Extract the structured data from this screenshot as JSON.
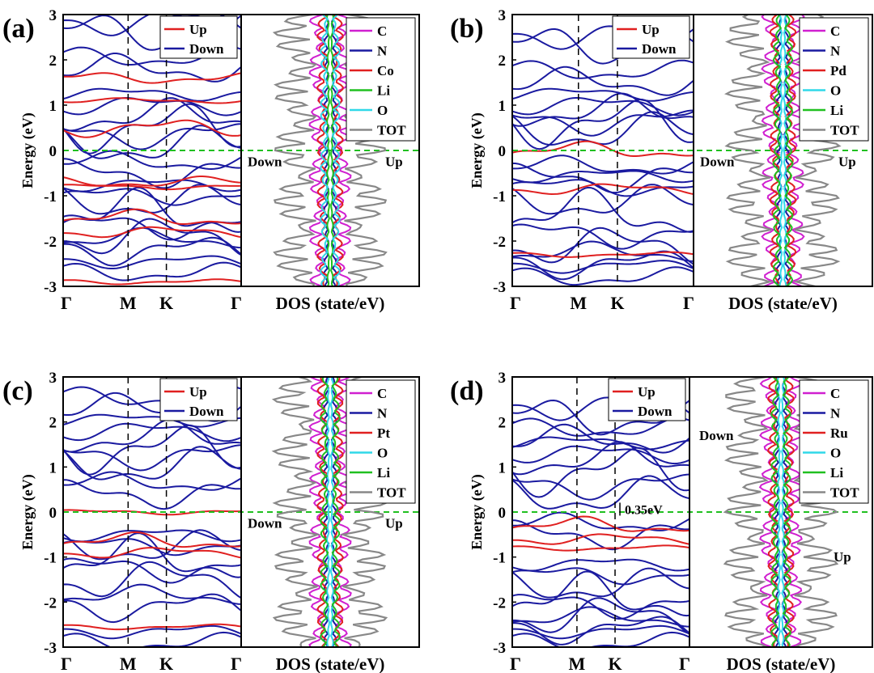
{
  "chart_data": [
    {
      "type": "line",
      "panel": "(a)",
      "ylabel": "Energy (eV)",
      "ylim": [
        -3,
        3
      ],
      "yticks": [
        "-3",
        "-2",
        "-1",
        "0",
        "1",
        "2",
        "3"
      ],
      "k_labels": [
        "Γ",
        "M",
        "K",
        "Γ"
      ],
      "band_legend": [
        "Up",
        "Down"
      ],
      "dos_xlabel": "DOS (state/eV)",
      "dos_legend": [
        "C",
        "N",
        "Co",
        "Li",
        "O",
        "TOT"
      ],
      "dos_colors": [
        "#d020d0",
        "#1a1aa0",
        "#e02020",
        "#20c020",
        "#30d8e8",
        "#888888"
      ],
      "dos_annotations": {
        "down": "Down",
        "up": "Up"
      },
      "fermi_level": 0,
      "up_bands_sample": [
        -2.9,
        -1.8,
        -1.5,
        -0.8,
        -0.7,
        0.5,
        1.1,
        1.6
      ],
      "down_bands_sample": [
        -2.7,
        -2.2,
        -1.9,
        -1.4,
        -1.0,
        -0.5,
        0.1,
        0.5,
        1.0,
        1.8,
        2.6
      ],
      "gap_annotation": ""
    },
    {
      "type": "line",
      "panel": "(b)",
      "ylabel": "Energy (eV)",
      "ylim": [
        -3,
        3
      ],
      "yticks": [
        "-3",
        "-2",
        "-1",
        "0",
        "1",
        "2",
        "3"
      ],
      "k_labels": [
        "Γ",
        "M",
        "K",
        "Γ"
      ],
      "band_legend": [
        "Up",
        "Down"
      ],
      "dos_xlabel": "DOS (state/eV)",
      "dos_legend": [
        "C",
        "N",
        "Pd",
        "O",
        "Li",
        "TOT"
      ],
      "dos_colors": [
        "#d020d0",
        "#1a1aa0",
        "#e02020",
        "#30d8e8",
        "#20c020",
        "#888888"
      ],
      "dos_annotations": {
        "down": "Down",
        "up": "Up"
      },
      "fermi_level": 0,
      "up_bands_sample": [
        -2.3,
        -0.85,
        0.0
      ],
      "down_bands_sample": [
        -2.8,
        -2.5,
        -2.1,
        -1.4,
        -0.8,
        -0.6,
        0.4,
        0.6,
        1.0,
        1.5,
        2.3
      ],
      "gap_annotation": ""
    },
    {
      "type": "line",
      "panel": "(c)",
      "ylabel": "Energy (eV)",
      "ylim": [
        -3,
        3
      ],
      "yticks": [
        "-3",
        "-2",
        "-1",
        "0",
        "1",
        "2",
        "3"
      ],
      "k_labels": [
        "Γ",
        "M",
        "K",
        "Γ"
      ],
      "band_legend": [
        "Up",
        "Down"
      ],
      "dos_xlabel": "DOS (state/eV)",
      "dos_legend": [
        "C",
        "N",
        "Pt",
        "O",
        "Li",
        "TOT"
      ],
      "dos_colors": [
        "#d020d0",
        "#1a1aa0",
        "#e02020",
        "#30d8e8",
        "#20c020",
        "#888888"
      ],
      "dos_annotations": {
        "down": "Down",
        "up": "Up"
      },
      "fermi_level": 0,
      "up_bands_sample": [
        -2.55,
        -0.9,
        -0.65,
        0.0
      ],
      "down_bands_sample": [
        -2.9,
        -2.1,
        -1.5,
        -1.05,
        -0.75,
        0.4,
        1.0,
        1.4,
        1.8,
        2.3
      ],
      "gap_annotation": ""
    },
    {
      "type": "line",
      "panel": "(d)",
      "ylabel": "Energy (eV)",
      "ylim": [
        -3,
        3
      ],
      "yticks": [
        "-3",
        "-2",
        "-1",
        "0",
        "1",
        "2",
        "3"
      ],
      "k_labels": [
        "Γ",
        "M",
        "K",
        "Γ"
      ],
      "band_legend": [
        "Up",
        "Down"
      ],
      "dos_xlabel": "DOS (state/eV)",
      "dos_legend": [
        "C",
        "N",
        "Ru",
        "O",
        "Li",
        "TOT"
      ],
      "dos_colors": [
        "#d020d0",
        "#1a1aa0",
        "#e02020",
        "#30d8e8",
        "#20c020",
        "#888888"
      ],
      "dos_annotations": {
        "down": "Down",
        "up": "Up"
      },
      "fermi_level": 0,
      "up_bands_sample": [
        -0.8,
        -0.6,
        -0.3
      ],
      "down_bands_sample": [
        -2.9,
        -2.6,
        -2.3,
        -1.9,
        -1.4,
        -0.5,
        0.35,
        0.9,
        1.3,
        1.6,
        2.1
      ],
      "gap_annotation": "0.35eV"
    }
  ]
}
